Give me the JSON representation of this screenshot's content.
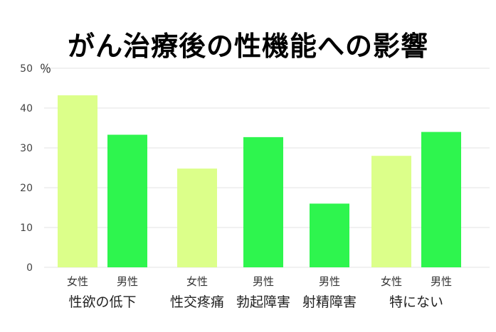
{
  "chart_data": {
    "type": "bar",
    "title": "がん治療後の性機能への影響",
    "ylabel": "％",
    "ylim": [
      0,
      50
    ],
    "yticks": [
      0,
      10,
      20,
      30,
      40,
      50
    ],
    "grid": true,
    "colors": {
      "女性": "#dcff8a",
      "男性": "#2ef54e"
    },
    "groups": [
      {
        "label": "性欲の低下",
        "bars": [
          {
            "sex": "女性",
            "value": 43.2
          },
          {
            "sex": "男性",
            "value": 33.3
          }
        ]
      },
      {
        "label": "性交疼痛",
        "bars": [
          {
            "sex": "女性",
            "value": 24.8
          }
        ]
      },
      {
        "label": "勃起障害",
        "bars": [
          {
            "sex": "男性",
            "value": 32.7
          }
        ]
      },
      {
        "label": "射精障害",
        "bars": [
          {
            "sex": "男性",
            "value": 16.0
          }
        ]
      },
      {
        "label": "特にない",
        "bars": [
          {
            "sex": "女性",
            "value": 28.0
          },
          {
            "sex": "男性",
            "value": 34.0
          }
        ]
      }
    ]
  }
}
